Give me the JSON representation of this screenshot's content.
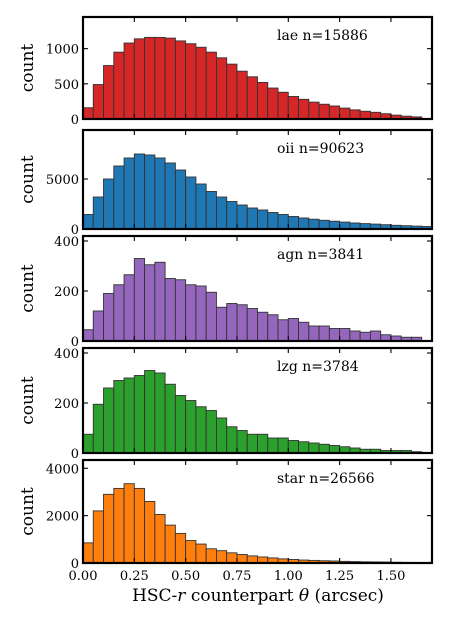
{
  "figure": {
    "xlabel_prefix": "HSC-",
    "xlabel_band": "r",
    "xlabel_mid": " counterpart ",
    "xlabel_theta": "θ",
    "xlabel_suffix": " (arcsec)"
  },
  "chart_data": [
    {
      "type": "bar",
      "label": "lae n=15886",
      "color": "#d62728",
      "ylabel": "count",
      "xlim": [
        0,
        1.7
      ],
      "ylim": [
        0,
        1450
      ],
      "yticks": [
        0,
        500,
        1000
      ],
      "bin_width": 0.05,
      "x": [
        0.0,
        0.05,
        0.1,
        0.15,
        0.2,
        0.25,
        0.3,
        0.35,
        0.4,
        0.45,
        0.5,
        0.55,
        0.6,
        0.65,
        0.7,
        0.75,
        0.8,
        0.85,
        0.9,
        0.95,
        1.0,
        1.05,
        1.1,
        1.15,
        1.2,
        1.25,
        1.3,
        1.35,
        1.4,
        1.45,
        1.5,
        1.55,
        1.6
      ],
      "values": [
        160,
        490,
        760,
        950,
        1080,
        1140,
        1160,
        1160,
        1150,
        1110,
        1070,
        1020,
        950,
        870,
        780,
        680,
        600,
        520,
        440,
        380,
        320,
        280,
        240,
        210,
        185,
        155,
        130,
        110,
        95,
        75,
        55,
        40,
        30
      ]
    },
    {
      "type": "bar",
      "label": "oii n=90623",
      "color": "#1f77b4",
      "ylabel": "count",
      "xlim": [
        0,
        1.7
      ],
      "ylim": [
        0,
        9900
      ],
      "yticks": [
        0,
        5000
      ],
      "bin_width": 0.05,
      "x": [
        0.0,
        0.05,
        0.1,
        0.15,
        0.2,
        0.25,
        0.3,
        0.35,
        0.4,
        0.45,
        0.5,
        0.55,
        0.6,
        0.65,
        0.7,
        0.75,
        0.8,
        0.85,
        0.9,
        0.95,
        1.0,
        1.05,
        1.1,
        1.15,
        1.2,
        1.25,
        1.3,
        1.35,
        1.4,
        1.45,
        1.5,
        1.55,
        1.6,
        1.65
      ],
      "values": [
        1450,
        3200,
        5000,
        6300,
        7100,
        7500,
        7400,
        7100,
        6600,
        5900,
        5200,
        4500,
        3750,
        3200,
        2750,
        2400,
        2100,
        1900,
        1650,
        1450,
        1250,
        1100,
        980,
        870,
        780,
        690,
        600,
        540,
        490,
        430,
        370,
        330,
        290,
        250
      ]
    },
    {
      "type": "bar",
      "label": "agn n=3841",
      "color": "#9467bd",
      "ylabel": "count",
      "xlim": [
        0,
        1.7
      ],
      "ylim": [
        0,
        420
      ],
      "yticks": [
        0,
        200,
        400
      ],
      "bin_width": 0.05,
      "x": [
        0.0,
        0.05,
        0.1,
        0.15,
        0.2,
        0.25,
        0.3,
        0.35,
        0.4,
        0.45,
        0.5,
        0.55,
        0.6,
        0.65,
        0.7,
        0.75,
        0.8,
        0.85,
        0.9,
        0.95,
        1.0,
        1.05,
        1.1,
        1.15,
        1.2,
        1.25,
        1.3,
        1.35,
        1.4,
        1.45,
        1.5,
        1.55,
        1.6
      ],
      "values": [
        45,
        120,
        190,
        225,
        265,
        330,
        305,
        315,
        250,
        245,
        225,
        220,
        195,
        135,
        150,
        145,
        130,
        115,
        105,
        85,
        90,
        75,
        60,
        60,
        50,
        50,
        40,
        35,
        40,
        25,
        20,
        15,
        15
      ]
    },
    {
      "type": "bar",
      "label": "lzg n=3784",
      "color": "#2ca02c",
      "ylabel": "count",
      "xlim": [
        0,
        1.7
      ],
      "ylim": [
        0,
        420
      ],
      "yticks": [
        0,
        200,
        400
      ],
      "bin_width": 0.05,
      "x": [
        0.0,
        0.05,
        0.1,
        0.15,
        0.2,
        0.25,
        0.3,
        0.35,
        0.4,
        0.45,
        0.5,
        0.55,
        0.6,
        0.65,
        0.7,
        0.75,
        0.8,
        0.85,
        0.9,
        0.95,
        1.0,
        1.05,
        1.1,
        1.15,
        1.2,
        1.25,
        1.3,
        1.35,
        1.4,
        1.45,
        1.5,
        1.55,
        1.6
      ],
      "values": [
        75,
        195,
        260,
        290,
        300,
        310,
        330,
        320,
        275,
        230,
        210,
        185,
        170,
        140,
        105,
        90,
        75,
        75,
        60,
        60,
        50,
        45,
        40,
        35,
        30,
        25,
        20,
        15,
        15,
        10,
        10,
        10,
        5
      ]
    },
    {
      "type": "bar",
      "label": "star n=26566",
      "color": "#ff7f0e",
      "ylabel": "count",
      "xlim": [
        0,
        1.7
      ],
      "ylim": [
        0,
        4350
      ],
      "yticks": [
        0,
        2000,
        4000
      ],
      "bin_width": 0.05,
      "x": [
        0.0,
        0.05,
        0.1,
        0.15,
        0.2,
        0.25,
        0.3,
        0.35,
        0.4,
        0.45,
        0.5,
        0.55,
        0.6,
        0.65,
        0.7,
        0.75,
        0.8,
        0.85,
        0.9,
        0.95,
        1.0,
        1.05,
        1.1,
        1.15,
        1.2,
        1.25,
        1.3,
        1.35,
        1.4,
        1.45,
        1.5,
        1.55,
        1.6
      ],
      "values": [
        850,
        2200,
        2900,
        3150,
        3350,
        3150,
        2600,
        2050,
        1600,
        1250,
        950,
        800,
        600,
        520,
        430,
        360,
        300,
        255,
        215,
        175,
        150,
        125,
        110,
        95,
        85,
        70,
        60,
        50,
        45,
        40,
        30,
        25,
        20
      ],
      "xticks": [
        0.0,
        0.25,
        0.5,
        0.75,
        1.0,
        1.25,
        1.5
      ],
      "xtick_labels": [
        "0.00",
        "0.25",
        "0.50",
        "0.75",
        "1.00",
        "1.25",
        "1.50"
      ]
    }
  ]
}
